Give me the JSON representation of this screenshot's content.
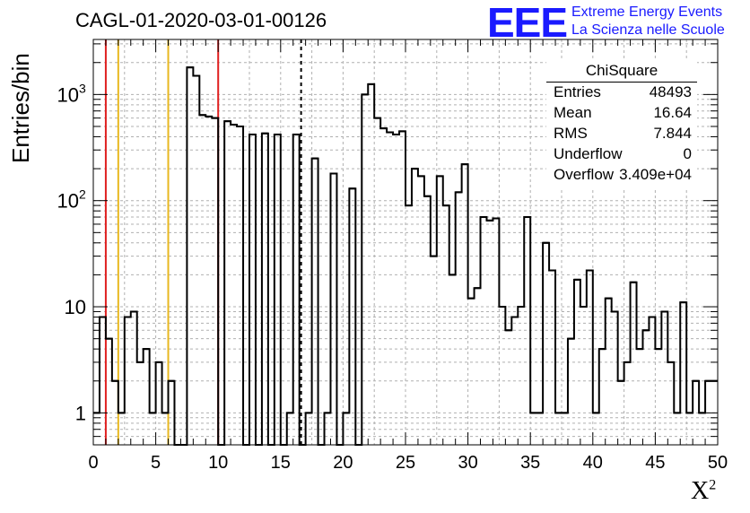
{
  "title": "CAGL-01-2020-03-01-00126",
  "logo": {
    "mark": "EEE",
    "line1": "Extreme Energy Events",
    "line2": "La Scienza nelle Scuole",
    "color": "#1a1aff"
  },
  "stats": {
    "title": "ChiSquare",
    "rows": [
      {
        "key": "Entries",
        "value": "48493"
      },
      {
        "key": "Mean",
        "value": "16.64"
      },
      {
        "key": "RMS",
        "value": "7.844"
      },
      {
        "key": "Underflow",
        "value": "0"
      },
      {
        "key": "Overflow",
        "value": "3.409e+04"
      }
    ]
  },
  "chart_data": {
    "type": "histogram",
    "title": "CAGL-01-2020-03-01-00126",
    "ylabel": "Entries/bin",
    "xlabel": "X",
    "xlabel_superscript": "2",
    "xlim": [
      0,
      50
    ],
    "ylim": [
      0.5,
      3300
    ],
    "yscale": "log",
    "grid": true,
    "bin_width": 0.5,
    "x_ticks": [
      "0",
      "5",
      "10",
      "15",
      "20",
      "25",
      "30",
      "35",
      "40",
      "45",
      "50"
    ],
    "y_ticks": [
      {
        "value": 1,
        "label": "1"
      },
      {
        "value": 10,
        "label": "10"
      },
      {
        "value": 100,
        "label": "10",
        "exp": "2"
      },
      {
        "value": 1000,
        "label": "10",
        "exp": "3"
      }
    ],
    "counts": [
      1,
      8,
      5,
      2,
      1,
      8,
      9,
      3,
      4,
      1,
      3,
      1,
      2,
      0,
      0,
      1800,
      1500,
      640,
      620,
      600,
      0,
      560,
      520,
      500,
      0,
      420,
      0,
      430,
      0,
      420,
      0,
      1,
      420,
      0,
      1,
      250,
      0,
      1,
      180,
      0,
      1,
      130,
      0,
      1000,
      1250,
      600,
      480,
      440,
      420,
      450,
      90,
      200,
      170,
      110,
      30,
      170,
      90,
      20,
      120,
      220,
      12,
      15,
      70,
      65,
      68,
      10,
      6,
      8,
      10,
      70,
      1,
      1,
      40,
      22,
      1,
      1,
      5,
      18,
      10,
      22,
      1,
      4,
      12,
      9,
      2,
      3,
      17,
      4,
      6,
      8,
      4,
      9,
      3,
      1,
      11,
      1,
      2,
      1,
      2,
      2
    ],
    "vertical_lines": [
      {
        "x": 1,
        "color": "#e02020",
        "style": "solid"
      },
      {
        "x": 2,
        "color": "#e8b820",
        "style": "solid"
      },
      {
        "x": 6,
        "color": "#e8b820",
        "style": "solid"
      },
      {
        "x": 10,
        "color": "#e02020",
        "style": "solid"
      },
      {
        "x": 16.64,
        "color": "#000000",
        "style": "dashed"
      }
    ]
  }
}
